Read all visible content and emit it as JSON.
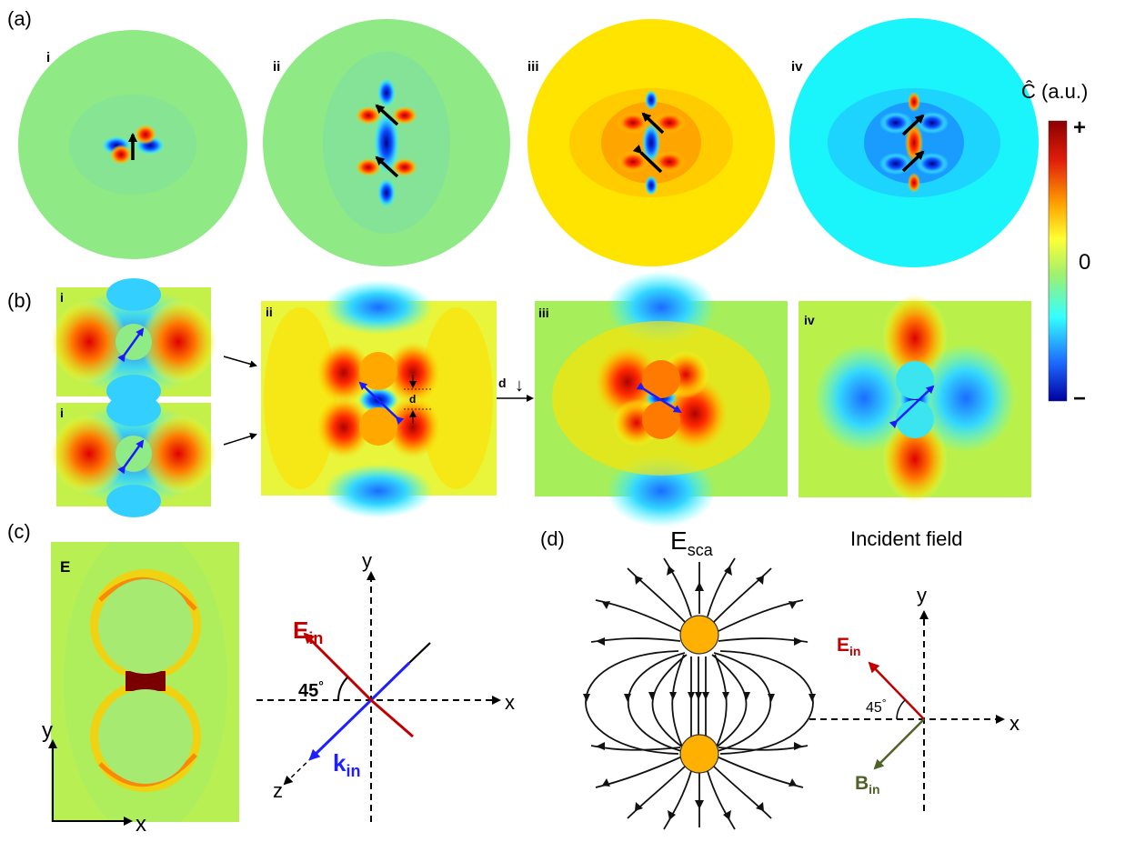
{
  "panels": {
    "a": "(a)",
    "b": "(b)",
    "c": "(c)",
    "d": "(d)"
  },
  "row_a": {
    "sublabels": [
      "i",
      "ii",
      "iii",
      "iv"
    ]
  },
  "row_b": {
    "sublabels": [
      "i",
      "i",
      "ii",
      "iii",
      "iv"
    ],
    "gap_label": "d",
    "step_label": "d",
    "step_arrow": "↓"
  },
  "colorbar": {
    "title": "Ĉ (a.u.)",
    "max_label": "+",
    "mid_label": "0",
    "min_label": "−",
    "colors": [
      "#8b0000",
      "#e11d0b",
      "#ffa500",
      "#ffff33",
      "#9ef070",
      "#33ffff",
      "#1e6cff",
      "#0000a0"
    ]
  },
  "panel_c": {
    "field_label": "E",
    "axis_y": "y",
    "axis_x": "x",
    "diagram": {
      "y": "y",
      "x": "x",
      "z": "z",
      "angle": "45",
      "degree": "°",
      "E_main": "E",
      "E_sub": "in",
      "k_main": "k",
      "k_sub": "in"
    },
    "colors": {
      "E": "#c00000",
      "k": "#1f1fff"
    }
  },
  "panel_d": {
    "title_main": "E",
    "title_sub": "sca",
    "incident_title": "Incident field",
    "y": "y",
    "x": "x",
    "angle": "45",
    "degree": "°",
    "E_main": "E",
    "E_sub": "in",
    "B_main": "B",
    "B_sub": "in",
    "colors": {
      "E": "#c00000",
      "B": "#4f6228",
      "sphere": "#ffb000"
    }
  }
}
